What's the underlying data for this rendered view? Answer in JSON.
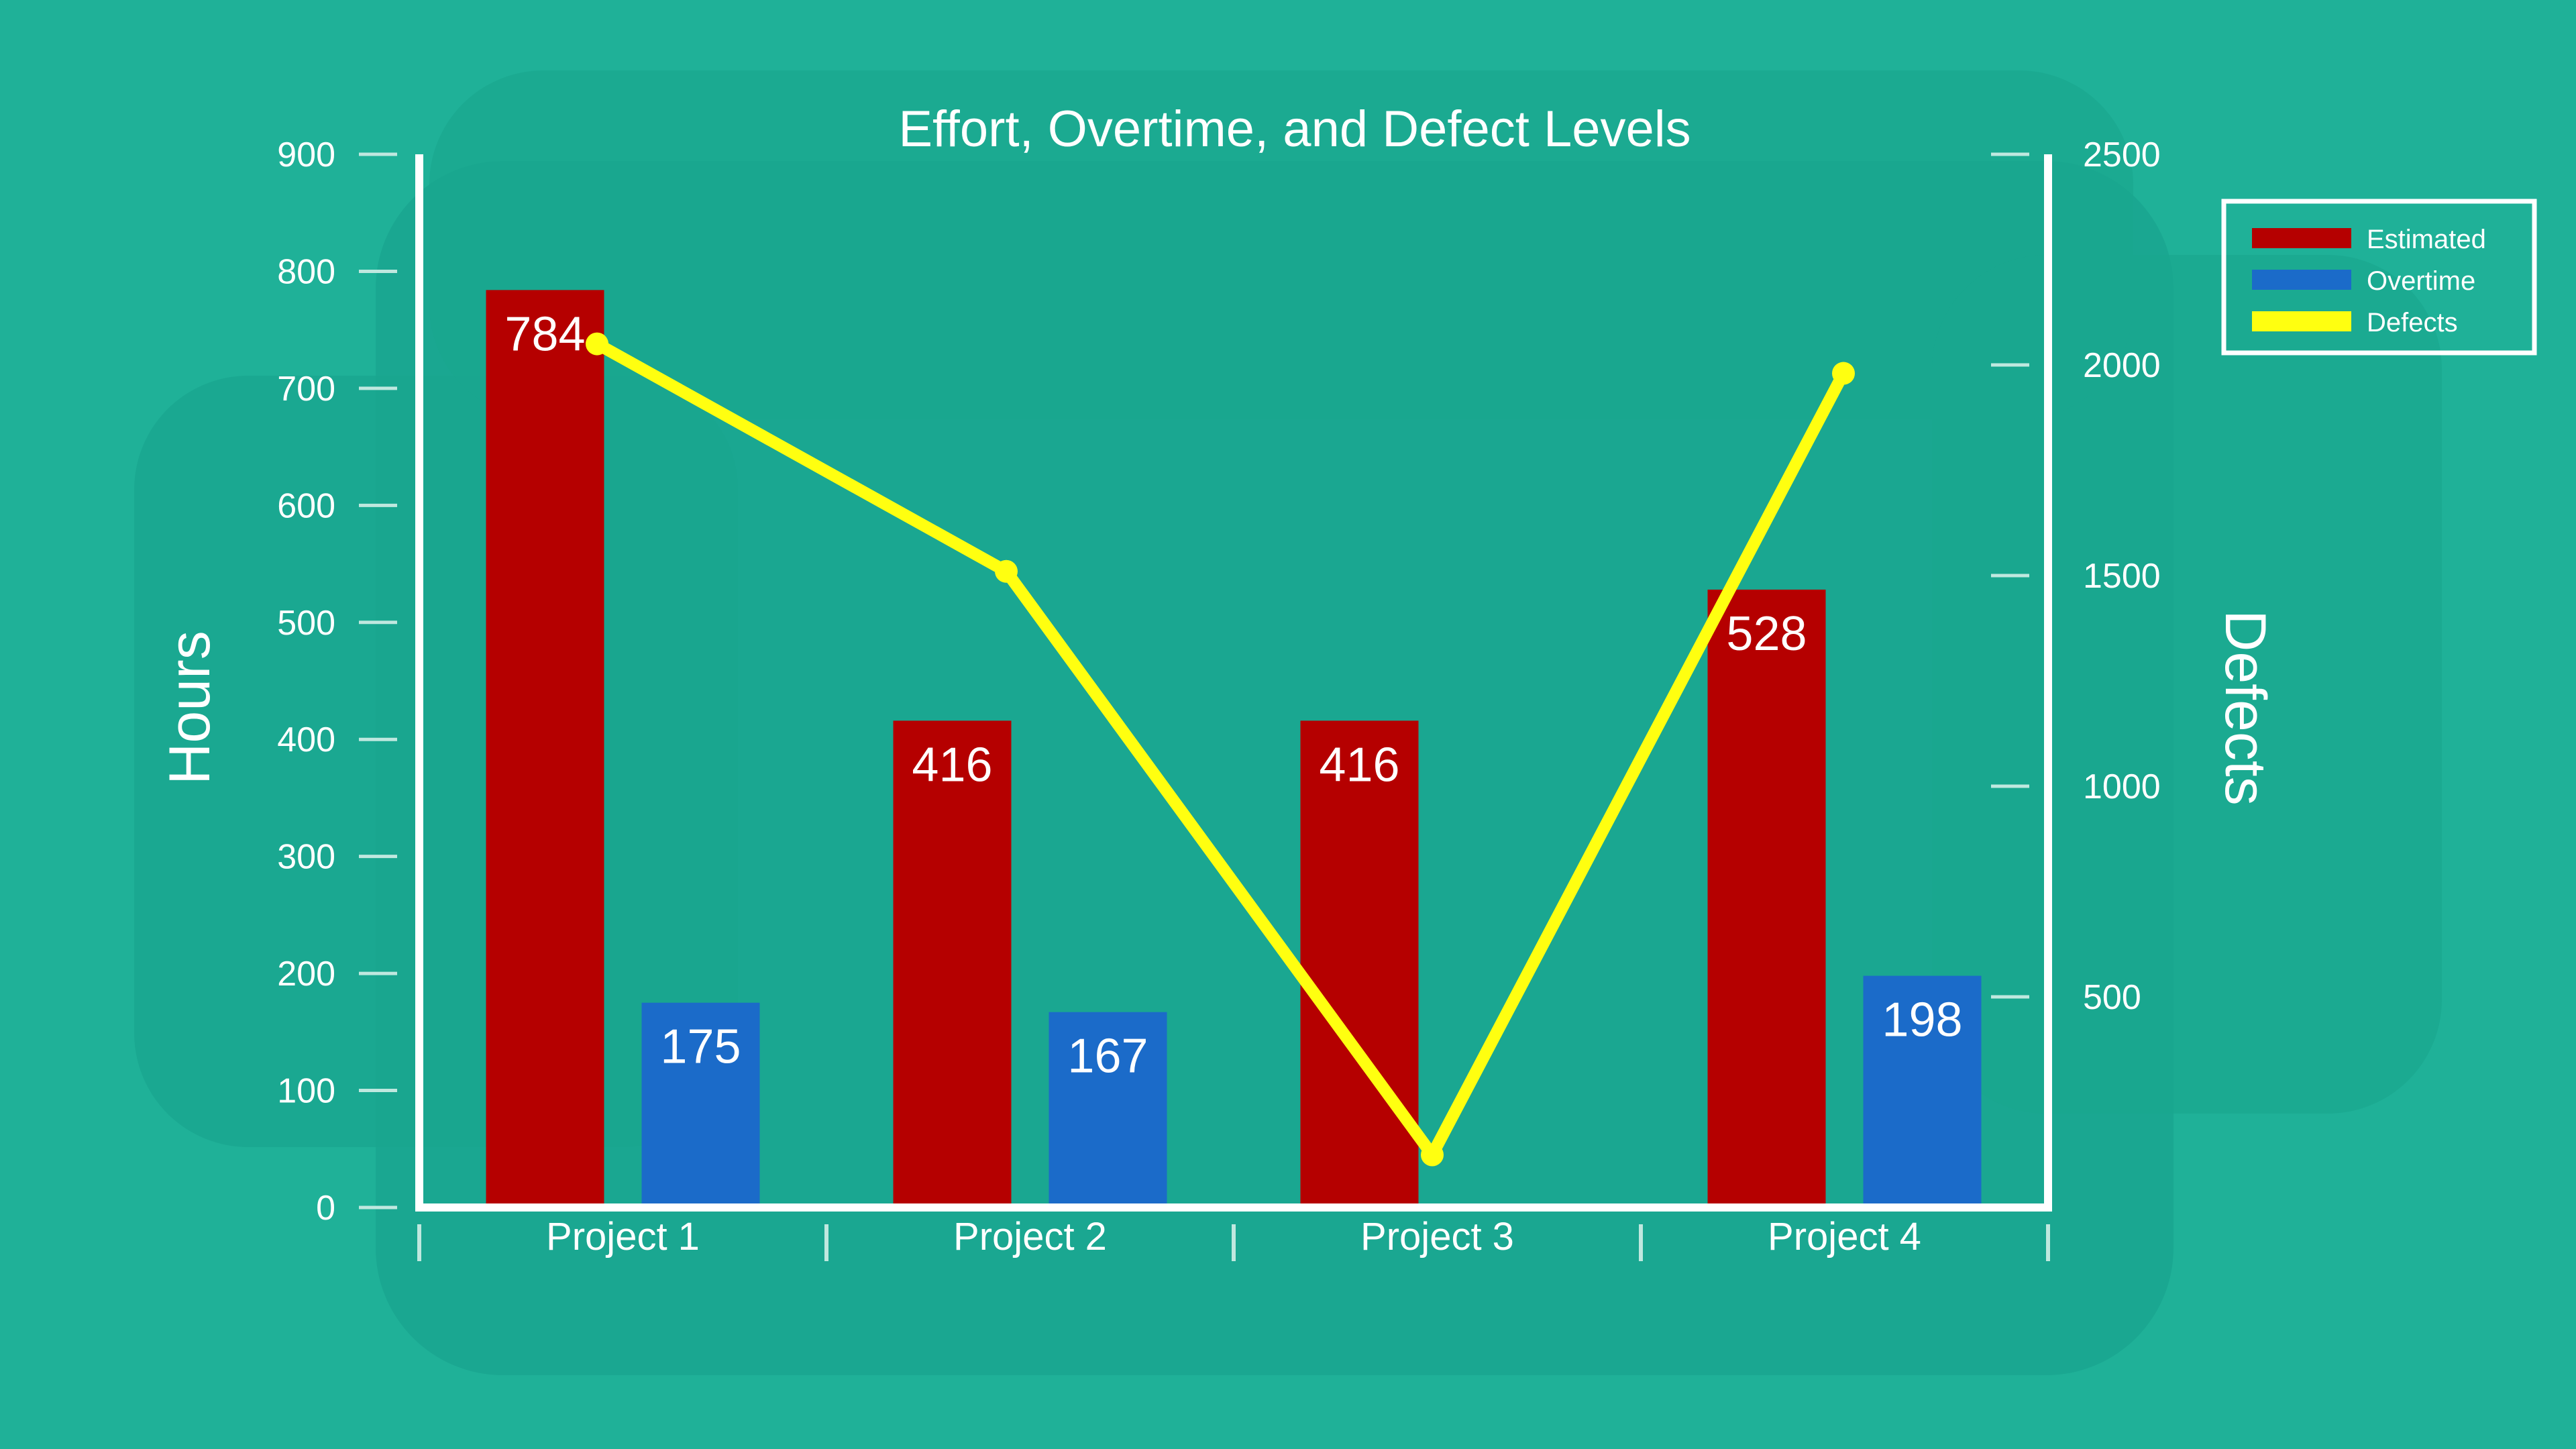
{
  "chart_data": {
    "type": "bar",
    "title": "Effort, Overtime, and Defect Levels",
    "categories": [
      "Project 1",
      "Project 2",
      "Project 3",
      "Project 4"
    ],
    "ylabel": "Hours",
    "y2label": "Defects",
    "ylim": [
      0,
      900
    ],
    "y2lim": [
      0,
      2500
    ],
    "yticks": [
      0,
      100,
      200,
      300,
      400,
      500,
      600,
      700,
      800,
      900
    ],
    "y2ticks": [
      500,
      1000,
      1500,
      2000,
      2500
    ],
    "series": [
      {
        "name": "Estimated",
        "type": "bar",
        "axis": "left",
        "color": "#b50000",
        "values": [
          784,
          416,
          416,
          528
        ],
        "labels": [
          "784",
          "416",
          "416",
          "528"
        ]
      },
      {
        "name": "Overtime",
        "type": "bar",
        "axis": "left",
        "color": "#1b6bc9",
        "values": [
          175,
          167,
          0,
          198
        ],
        "labels": [
          "175",
          "167",
          "",
          "198"
        ]
      },
      {
        "name": "Defects",
        "type": "line",
        "axis": "right",
        "color": "#ffff10",
        "values": [
          2050,
          1510,
          125,
          1980
        ]
      }
    ],
    "legend": "top-right",
    "grid": false
  }
}
